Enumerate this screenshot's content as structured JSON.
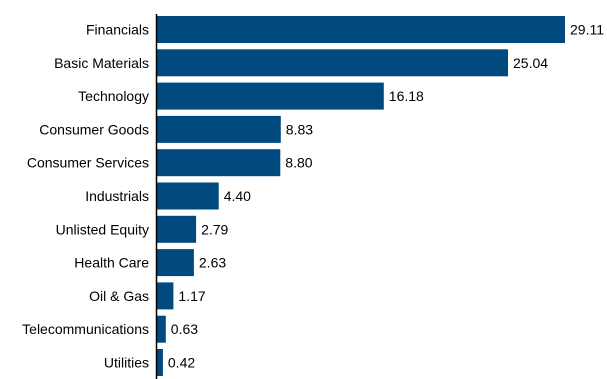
{
  "chart_data": {
    "type": "bar",
    "orientation": "horizontal",
    "categories": [
      "Financials",
      "Basic Materials",
      "Technology",
      "Consumer Goods",
      "Consumer Services",
      "Industrials",
      "Unlisted Equity",
      "Health Care",
      "Oil & Gas",
      "Telecommunications",
      "Utilities"
    ],
    "values": [
      29.11,
      25.04,
      16.18,
      8.83,
      8.8,
      4.4,
      2.79,
      2.63,
      1.17,
      0.63,
      0.42
    ],
    "value_labels": [
      "29.11",
      "25.04",
      "16.18",
      "8.83",
      "8.80",
      "4.40",
      "2.79",
      "2.63",
      "1.17",
      "0.63",
      "0.42"
    ],
    "title": "",
    "xlabel": "",
    "ylabel": "",
    "xlim": [
      0,
      29.11
    ],
    "grid": false,
    "legend": "none",
    "bar_color": "#004a80",
    "axis_color": "#000000",
    "text_color": "#000000"
  }
}
